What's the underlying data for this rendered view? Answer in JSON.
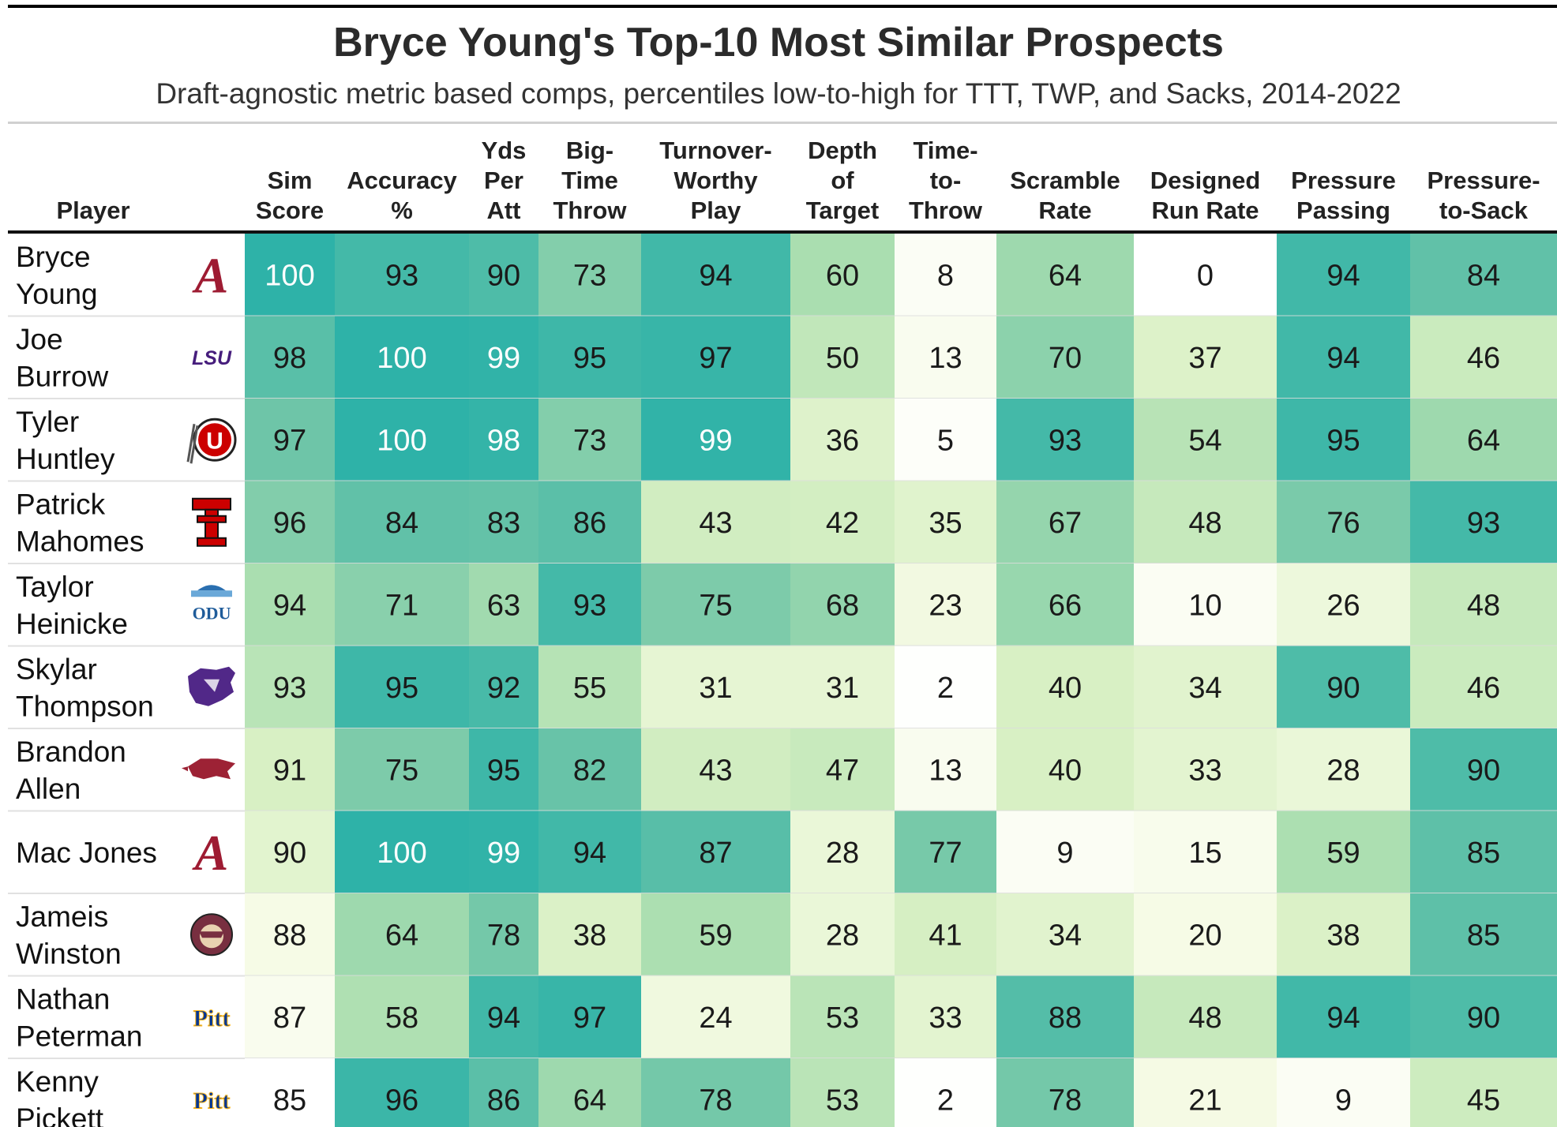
{
  "chart_data": {
    "type": "table",
    "title": "Bryce Young's Top-10 Most Similar Prospects",
    "subtitle": "Draft-agnostic metric based comps, percentiles low-to-high for TTT, TWP, and Sacks, 2014-2022",
    "columns": [
      {
        "key": "player",
        "label_lines": [
          "Player"
        ]
      },
      {
        "key": "sim",
        "label_lines": [
          "Sim",
          "Score"
        ]
      },
      {
        "key": "acc",
        "label_lines": [
          "Accuracy",
          "%"
        ]
      },
      {
        "key": "ypa",
        "label_lines": [
          "Yds",
          "Per",
          "Att"
        ]
      },
      {
        "key": "btt",
        "label_lines": [
          "Big-",
          "Time",
          "Throw"
        ]
      },
      {
        "key": "twp",
        "label_lines": [
          "Turnover-",
          "Worthy",
          "Play"
        ]
      },
      {
        "key": "adot",
        "label_lines": [
          "Depth",
          "of",
          "Target"
        ]
      },
      {
        "key": "ttt",
        "label_lines": [
          "Time-",
          "to-",
          "Throw"
        ]
      },
      {
        "key": "scr",
        "label_lines": [
          "Scramble",
          "Rate"
        ]
      },
      {
        "key": "drr",
        "label_lines": [
          "Designed",
          "Run Rate"
        ]
      },
      {
        "key": "pp",
        "label_lines": [
          "Pressure",
          "Passing"
        ]
      },
      {
        "key": "p2s",
        "label_lines": [
          "Pressure-",
          "to-Sack"
        ]
      }
    ],
    "rows": [
      {
        "name_lines": [
          "Bryce",
          "Young"
        ],
        "logo": "alabama-logo-icon",
        "values": [
          100,
          93,
          90,
          73,
          94,
          60,
          8,
          64,
          0,
          94,
          84
        ]
      },
      {
        "name_lines": [
          "Joe",
          "Burrow"
        ],
        "logo": "lsu-logo-icon",
        "values": [
          98,
          100,
          99,
          95,
          97,
          50,
          13,
          70,
          37,
          94,
          46
        ]
      },
      {
        "name_lines": [
          "Tyler",
          "Huntley"
        ],
        "logo": "utah-logo-icon",
        "values": [
          97,
          100,
          98,
          73,
          99,
          36,
          5,
          93,
          54,
          95,
          64
        ]
      },
      {
        "name_lines": [
          "Patrick",
          "Mahomes"
        ],
        "logo": "texas-tech-logo-icon",
        "values": [
          96,
          84,
          83,
          86,
          43,
          42,
          35,
          67,
          48,
          76,
          93
        ]
      },
      {
        "name_lines": [
          "Taylor",
          "Heinicke"
        ],
        "logo": "odu-logo-icon",
        "values": [
          94,
          71,
          63,
          93,
          75,
          68,
          23,
          66,
          10,
          26,
          48
        ]
      },
      {
        "name_lines": [
          "Skylar",
          "Thompson"
        ],
        "logo": "kansas-state-logo-icon",
        "values": [
          93,
          95,
          92,
          55,
          31,
          31,
          2,
          40,
          34,
          90,
          46
        ]
      },
      {
        "name_lines": [
          "Brandon",
          "Allen"
        ],
        "logo": "arkansas-logo-icon",
        "values": [
          91,
          75,
          95,
          82,
          43,
          47,
          13,
          40,
          33,
          28,
          90
        ]
      },
      {
        "name_lines": [
          "Mac Jones"
        ],
        "logo": "alabama-logo-icon",
        "values": [
          90,
          100,
          99,
          94,
          87,
          28,
          77,
          9,
          15,
          59,
          85
        ]
      },
      {
        "name_lines": [
          "Jameis",
          "Winston"
        ],
        "logo": "florida-state-logo-icon",
        "values": [
          88,
          64,
          78,
          38,
          59,
          28,
          41,
          34,
          20,
          38,
          85
        ]
      },
      {
        "name_lines": [
          "Nathan",
          "Peterman"
        ],
        "logo": "pitt-logo-icon",
        "values": [
          87,
          58,
          94,
          97,
          24,
          53,
          33,
          88,
          48,
          94,
          90
        ]
      },
      {
        "name_lines": [
          "Kenny",
          "Pickett"
        ],
        "logo": "pitt-logo-icon",
        "values": [
          85,
          96,
          86,
          64,
          78,
          53,
          2,
          78,
          21,
          9,
          45
        ]
      }
    ],
    "logo_text": {
      "lsu": "LSU",
      "utah": "U",
      "texas_tech": "T",
      "odu": "ODU",
      "pitt": "Pitt"
    },
    "color_scale": {
      "low": "#ffffff",
      "mid_low": "#eef7d4",
      "mid": "#a8dcae",
      "mid_high": "#6cc3a9",
      "high": "#2fb2a8"
    },
    "sim_score_color_range": [
      85,
      100
    ]
  }
}
